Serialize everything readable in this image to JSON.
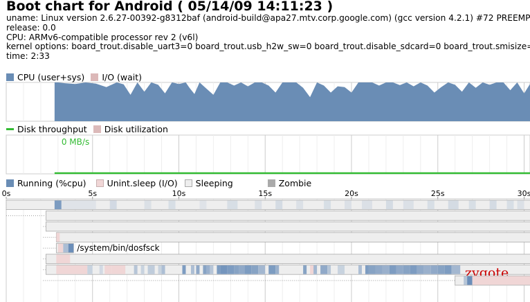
{
  "title": "Boot chart for Android ( 05/14/09 14:11:23 )",
  "meta": [
    "uname: Linux version 2.6.27-00392-g8312baf (android-build@apa27.mtv.corp.google.com) (gcc version 4.2.1) #72 PREEMPT",
    "release: 0.0",
    "CPU: ARMv6-compatible processor rev 2 (v6l)",
    "kernel options: board_trout.disable_uart3=0 board_trout.usb_h2w_sw=0 board_trout.disable_sdcard=0 board_trout.smisize=",
    "time: 2:33"
  ],
  "colors": {
    "cpu": "#6a8db5",
    "io_wait": "#dcb8b8",
    "disk_throughput": "#33bb33",
    "disk_util": "#dcbaba",
    "running": "#6a8db5",
    "unint_sleep": "#f0d6d6",
    "sleeping": "#eeeeee",
    "zombie": "#aaaaaa",
    "zygote_label": "#cc0000"
  },
  "cpu_legend": {
    "cpu": "CPU (user+sys)",
    "io": "I/O (wait)"
  },
  "disk_legend": {
    "throughput": "Disk throughput",
    "util": "Disk utilization"
  },
  "disk_label": "0 MB/s",
  "proc_legend": {
    "running": "Running (%cpu)",
    "unint": "Unint.sleep (I/O)",
    "sleeping": "Sleeping",
    "zombie": "Zombie"
  },
  "labels": {
    "dosfsck": "/system/bin/dosfsck",
    "zygote": "zygote"
  },
  "chart_data": [
    {
      "type": "area",
      "title": "",
      "series": [
        {
          "name": "CPU (user+sys)",
          "x": [
            2.8,
            3.0,
            3.4,
            4.0,
            4.6,
            5.2,
            5.8,
            6.4,
            6.8,
            7.2,
            7.6,
            8.0,
            8.4,
            8.8,
            9.2,
            9.6,
            10.0,
            10.4,
            10.6,
            10.9,
            11.2,
            11.6,
            12.0,
            12.4,
            12.8,
            13.2,
            13.6,
            14.0,
            14.4,
            14.8,
            15.2,
            15.6,
            16.0,
            16.4,
            16.8,
            17.2,
            17.6,
            18.0,
            18.4,
            18.8,
            19.2,
            19.6,
            20.0,
            20.4,
            20.8,
            21.2,
            21.6,
            22.0,
            22.4,
            22.8,
            23.2,
            23.6,
            24.0,
            24.4,
            24.8,
            25.2,
            25.6,
            26.0,
            26.4,
            26.8,
            27.2,
            27.6,
            28.0,
            28.4,
            28.8,
            29.2,
            29.6,
            30.0,
            30.4,
            30.6
          ],
          "values": [
            100,
            100,
            98,
            96,
            100,
            97,
            88,
            100,
            95,
            68,
            100,
            76,
            100,
            94,
            72,
            100,
            96,
            100,
            87,
            70,
            100,
            84,
            68,
            100,
            100,
            92,
            100,
            90,
            100,
            100,
            92,
            74,
            100,
            100,
            100,
            86,
            62,
            100,
            92,
            74,
            90,
            88,
            74,
            100,
            100,
            100,
            92,
            100,
            100,
            93,
            100,
            90,
            100,
            92,
            74,
            88,
            100,
            94,
            76,
            100,
            86,
            100,
            94,
            100,
            100,
            80,
            100,
            72,
            100,
            100
          ]
        },
        {
          "name": "I/O (wait)",
          "x": [],
          "values": []
        }
      ],
      "xlim": [
        0,
        30.6
      ],
      "ylim": [
        0,
        100
      ]
    },
    {
      "type": "line",
      "title": "",
      "series": [
        {
          "name": "Disk throughput",
          "x": [
            2.8,
            30.6
          ],
          "values": [
            0,
            0
          ]
        }
      ],
      "xlim": [
        0,
        30.6
      ]
    },
    {
      "type": "heatmap",
      "title": "",
      "x_ticks": [
        "0s",
        "5s",
        "10s",
        "15s",
        "20s",
        "25s",
        "30s"
      ],
      "x_tick_values": [
        0,
        5,
        10,
        15,
        20,
        25,
        30
      ],
      "xlim": [
        0,
        30.6
      ],
      "processes": [
        {
          "label": "",
          "start": 0.0,
          "level": 0,
          "bar": [
            0.0,
            30.6
          ],
          "segments": [
            [
              2.8,
              3.2,
              "running",
              0.6
            ],
            [
              3.2,
              5.2,
              "running",
              0.08
            ],
            [
              6.0,
              6.4,
              "running",
              0.15
            ],
            [
              8.0,
              8.4,
              "running",
              0.1
            ],
            [
              9.4,
              9.8,
              "running",
              0.12
            ],
            [
              11.2,
              11.6,
              "running",
              0.08
            ],
            [
              12.8,
              13.4,
              "running",
              0.12
            ],
            [
              14.4,
              14.8,
              "running",
              0.1
            ],
            [
              15.6,
              16.0,
              "running",
              0.14
            ],
            [
              16.8,
              17.2,
              "running",
              0.1
            ],
            [
              18.4,
              18.8,
              "running",
              0.12
            ],
            [
              19.6,
              20.0,
              "running",
              0.1
            ],
            [
              20.6,
              21.2,
              "running",
              0.1
            ],
            [
              22.0,
              22.4,
              "running",
              0.14
            ],
            [
              23.0,
              23.6,
              "running",
              0.1
            ],
            [
              24.4,
              24.8,
              "running",
              0.12
            ],
            [
              25.6,
              26.2,
              "running",
              0.14
            ],
            [
              26.8,
              27.2,
              "running",
              0.12
            ],
            [
              28.0,
              28.4,
              "running",
              0.14
            ],
            [
              29.0,
              29.4,
              "running",
              0.12
            ],
            [
              29.6,
              30.0,
              "running",
              0.1
            ]
          ]
        },
        {
          "label": "",
          "start": 0.0,
          "level": 1,
          "bar": [
            2.3,
            30.6
          ],
          "segments": []
        },
        {
          "label": "",
          "start": 0.0,
          "level": 2,
          "bar": [
            2.3,
            30.6
          ],
          "segments": []
        },
        {
          "label": "",
          "start": 2.3,
          "level": 3,
          "bar": [
            2.9,
            30.6
          ],
          "segments": [
            [
              2.9,
              3.1,
              "unint",
              1
            ]
          ]
        },
        {
          "label": "/system/bin/dosfsck",
          "start": 2.3,
          "level": 3,
          "bar": [
            2.9,
            3.9
          ],
          "segments": [
            [
              3.0,
              3.3,
              "unint",
              1
            ],
            [
              3.3,
              3.6,
              "running",
              0.35
            ],
            [
              3.6,
              3.9,
              "running",
              0.7
            ]
          ]
        },
        {
          "label": "",
          "start": 2.3,
          "level": 2,
          "bar": [
            2.3,
            30.6
          ],
          "segments": [
            [
              2.9,
              3.7,
              "unint",
              1
            ]
          ]
        },
        {
          "label": "zygote",
          "start": 2.3,
          "level": 2,
          "bar": [
            2.3,
            30.6
          ],
          "segments": [
            [
              2.9,
              4.7,
              "unint",
              1
            ],
            [
              4.7,
              5.0,
              "running",
              0.2
            ],
            [
              5.4,
              5.6,
              "running",
              0.15
            ],
            [
              5.7,
              6.1,
              "unint",
              1
            ],
            [
              6.1,
              6.9,
              "unint",
              1
            ],
            [
              7.4,
              7.6,
              "running",
              0.3
            ],
            [
              7.8,
              8.0,
              "running",
              0.2
            ],
            [
              8.2,
              8.6,
              "running",
              0.25
            ],
            [
              8.8,
              9.0,
              "running",
              0.2
            ],
            [
              9.0,
              9.2,
              "running",
              0.35
            ],
            [
              10.2,
              10.4,
              "running",
              0.6
            ],
            [
              10.7,
              10.9,
              "running",
              0.35
            ],
            [
              11.0,
              11.2,
              "running",
              0.5
            ],
            [
              11.4,
              11.6,
              "running",
              0.55
            ],
            [
              11.6,
              11.8,
              "running",
              0.45
            ],
            [
              11.8,
              12.0,
              "running",
              0.3
            ],
            [
              12.2,
              12.4,
              "running",
              0.6
            ],
            [
              12.4,
              12.8,
              "running",
              0.65
            ],
            [
              12.8,
              13.2,
              "running",
              0.6
            ],
            [
              13.2,
              13.5,
              "running",
              0.55
            ],
            [
              13.5,
              13.8,
              "running",
              0.5
            ],
            [
              13.8,
              14.2,
              "running",
              0.6
            ],
            [
              14.2,
              14.6,
              "running",
              0.55
            ],
            [
              14.6,
              15.0,
              "running",
              0.4
            ],
            [
              15.2,
              15.6,
              "running",
              0.6
            ],
            [
              15.6,
              15.8,
              "running",
              0.45
            ],
            [
              17.2,
              17.4,
              "running",
              0.55
            ],
            [
              17.6,
              17.8,
              "unint",
              1
            ],
            [
              17.8,
              18.0,
              "running",
              0.4
            ],
            [
              18.2,
              18.6,
              "running",
              0.5
            ],
            [
              18.6,
              18.8,
              "running",
              0.3
            ],
            [
              19.2,
              19.6,
              "running",
              0.2
            ],
            [
              20.4,
              20.6,
              "running",
              0.35
            ],
            [
              20.8,
              21.0,
              "running",
              0.6
            ],
            [
              21.0,
              21.4,
              "running",
              0.55
            ],
            [
              21.4,
              21.8,
              "running",
              0.5
            ],
            [
              21.8,
              22.2,
              "running",
              0.45
            ],
            [
              22.2,
              22.6,
              "running",
              0.6
            ],
            [
              22.6,
              23.0,
              "running",
              0.5
            ],
            [
              23.0,
              23.4,
              "running",
              0.55
            ],
            [
              23.4,
              23.8,
              "running",
              0.6
            ],
            [
              23.8,
              24.2,
              "running",
              0.5
            ],
            [
              24.2,
              24.6,
              "running",
              0.45
            ],
            [
              24.6,
              25.0,
              "running",
              0.5
            ],
            [
              25.0,
              25.4,
              "running",
              0.55
            ],
            [
              25.4,
              25.8,
              "running",
              0.6
            ],
            [
              25.8,
              26.3,
              "running",
              0.4
            ]
          ]
        },
        {
          "label": "",
          "start": 2.3,
          "level": 2,
          "bar": [
            26.0,
            30.6
          ],
          "segments": [
            [
              26.5,
              26.7,
              "running",
              0.3
            ],
            [
              26.7,
              27.0,
              "running",
              0.7
            ],
            [
              27.0,
              30.6,
              "unint",
              1
            ]
          ]
        }
      ]
    }
  ]
}
